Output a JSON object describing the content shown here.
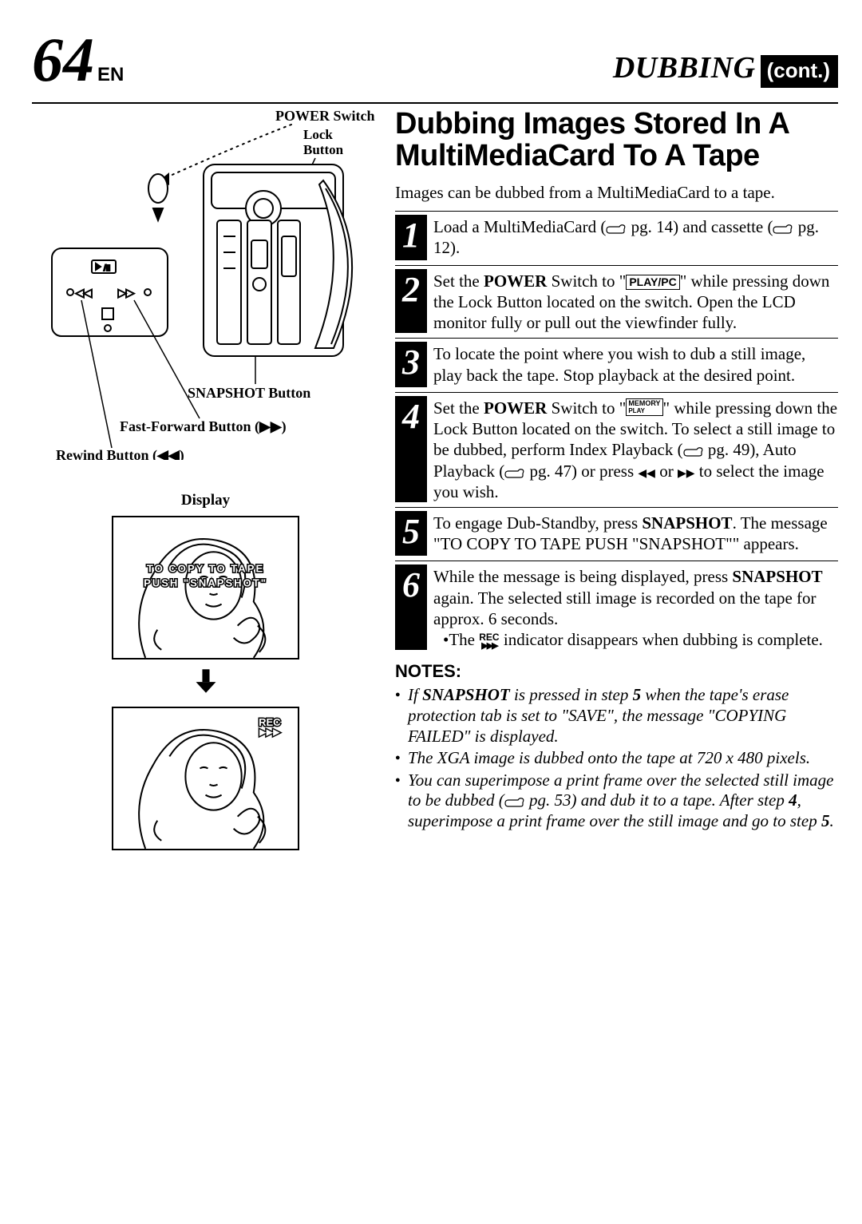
{
  "page": {
    "number": "64",
    "lang": "EN"
  },
  "header": {
    "title": "DUBBING",
    "cont": "(cont.)"
  },
  "labels": {
    "power_switch": "POWER Switch",
    "lock_button_l1": "Lock",
    "lock_button_l2": "Button",
    "snapshot_button": "SNAPSHOT Button",
    "fast_forward": "Fast-Forward Button (",
    "rewind": "Rewind Button (",
    "display": "Display",
    "disp_text_l1": "TO COPY TO TAPE",
    "disp_text_l2": "PUSH \"SNAPSHOT\"",
    "rec_label": "REC"
  },
  "main": {
    "heading": "Dubbing Images Stored In A MultiMediaCard To A Tape",
    "intro": "Images can be dubbed from a MultiMediaCard to a tape.",
    "steps": [
      {
        "n": "1",
        "html": "Load a MultiMediaCard (<svg class='hand-icon' viewBox='0 0 26 14'><path d='M1 9 Q1 5 5 5 L17 5 Q19 2 22 3 Q25 4 23 8 L23 11 Q23 13 20 13 L5 13 Q1 13 1 9 Z' fill='none' stroke='#000' stroke-width='1.2'/></svg> pg. 14) and cassette (<svg class='hand-icon' viewBox='0 0 26 14'><path d='M1 9 Q1 5 5 5 L17 5 Q19 2 22 3 Q25 4 23 8 L23 11 Q23 13 20 13 L5 13 Q1 13 1 9 Z' fill='none' stroke='#000' stroke-width='1.2'/></svg> pg. 12)."
      },
      {
        "n": "2",
        "html": "Set the <b>POWER</b> Switch to \"<span class='inline-box'>PLAY/PC</span>\" while pressing down the Lock Button located on the switch. Open the LCD monitor fully or pull out the viewfinder fully."
      },
      {
        "n": "3",
        "html": "To locate the point where you wish to dub a still image, play back the tape. Stop playback at the desired point."
      },
      {
        "n": "4",
        "html": "Set the <b>POWER</b> Switch to \"<span class='inline-box small'>MEMORY<span class='sub'>PLAY</span></span>\" while pressing down the Lock Button located on the switch. To select a still image to be dubbed, perform Index Playback (<svg class='hand-icon' viewBox='0 0 26 14'><path d='M1 9 Q1 5 5 5 L17 5 Q19 2 22 3 Q25 4 23 8 L23 11 Q23 13 20 13 L5 13 Q1 13 1 9 Z' fill='none' stroke='#000' stroke-width='1.2'/></svg> pg. 49), Auto Playback (<svg class='hand-icon' viewBox='0 0 26 14'><path d='M1 9 Q1 5 5 5 L17 5 Q19 2 22 3 Q25 4 23 8 L23 11 Q23 13 20 13 L5 13 Q1 13 1 9 Z' fill='none' stroke='#000' stroke-width='1.2'/></svg> pg. 47) or press <span class='tri-rw'></span> or <span class='tri-ff'></span> to select the image you wish."
      },
      {
        "n": "5",
        "html": "To engage Dub-Standby, press <b>SNAPSHOT</b>. The message \"TO COPY TO TAPE PUSH &quot;SNAPSHOT&quot;\" appears."
      },
      {
        "n": "6",
        "html": "While the message is being displayed, press <b>SNAPSHOT</b> again. The selected still image is recorded on the tape for approx. 6 seconds.<div class='bullet-sub'>•The <span class='rec-inline'>REC<br><span class='arrow'>▶▶▶</span></span> indicator disappears when dubbing is complete.</div>"
      }
    ],
    "notes_head": "NOTES:",
    "notes": [
      "If <b>SNAPSHOT</b> is pressed in step <b>5</b> when the tape's erase protection tab is set to \"SAVE\", the message \"COPYING FAILED\" is displayed.",
      "The XGA image is dubbed onto the tape at 720 x 480 pixels.",
      "You can superimpose a print frame over the selected still image to be dubbed (<svg class='hand-icon' viewBox='0 0 26 14'><path d='M1 9 Q1 5 5 5 L17 5 Q19 2 22 3 Q25 4 23 8 L23 11 Q23 13 20 13 L5 13 Q1 13 1 9 Z' fill='none' stroke='#000' stroke-width='1.2'/></svg> pg. 53) and dub it to a tape. After step <b>4</b>, superimpose a print frame over the still image and go to step <b>5</b>."
    ]
  },
  "colors": {
    "black": "#000000",
    "white": "#ffffff"
  }
}
